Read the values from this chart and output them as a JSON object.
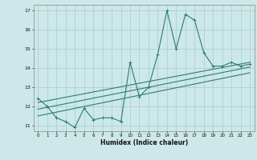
{
  "xlabel": "Humidex (Indice chaleur)",
  "ylabel": "",
  "bg_color": "#cce8e8",
  "grid_color": "#aacccc",
  "line_color": "#2e7d6e",
  "xlim": [
    -0.5,
    23.5
  ],
  "ylim": [
    10.7,
    17.3
  ],
  "yticks": [
    11,
    12,
    13,
    14,
    15,
    16,
    17
  ],
  "xticks": [
    0,
    1,
    2,
    3,
    4,
    5,
    6,
    7,
    8,
    9,
    10,
    11,
    12,
    13,
    14,
    15,
    16,
    17,
    18,
    19,
    20,
    21,
    22,
    23
  ],
  "series1_x": [
    0,
    1,
    2,
    3,
    4,
    5,
    6,
    7,
    8,
    9,
    10,
    11,
    12,
    13,
    14,
    15,
    16,
    17,
    18,
    19,
    20,
    21,
    22,
    23
  ],
  "series1_y": [
    12.4,
    12.0,
    11.4,
    11.2,
    10.9,
    11.9,
    11.3,
    11.4,
    11.4,
    11.2,
    14.3,
    12.5,
    13.0,
    14.7,
    17.0,
    15.0,
    16.8,
    16.5,
    14.8,
    14.1,
    14.1,
    14.3,
    14.1,
    14.2
  ],
  "trend1_x": [
    0,
    23
  ],
  "trend1_y": [
    12.2,
    14.3
  ],
  "trend2_x": [
    0,
    23
  ],
  "trend2_y": [
    11.85,
    14.05
  ],
  "trend3_x": [
    0,
    23
  ],
  "trend3_y": [
    11.5,
    13.75
  ]
}
